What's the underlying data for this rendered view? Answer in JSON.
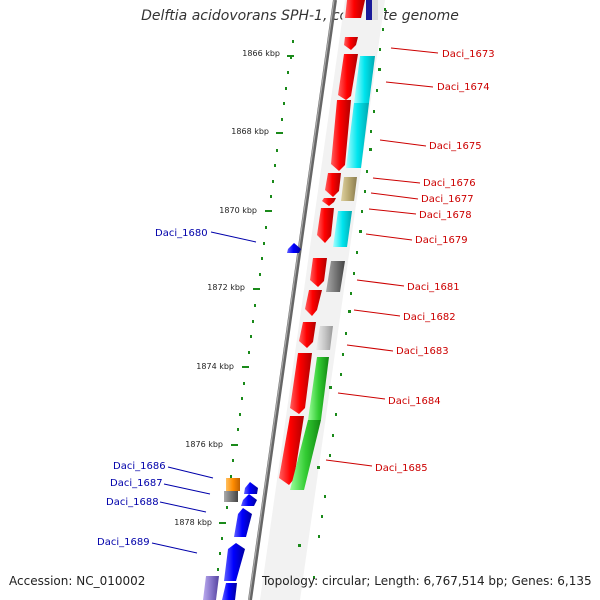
{
  "title": "Delftia acidovorans SPH-1, complete genome",
  "accession": "Accession: NC_010002",
  "topology": "Topology: circular; Length: 6,767,514 bp; Genes: 6,135",
  "scale_ticks": [
    "1866 kbp",
    "1868 kbp",
    "1870 kbp",
    "1872 kbp",
    "1874 kbp",
    "1876 kbp",
    "1878 kbp"
  ],
  "genes_forward": [
    "Daci_1673",
    "Daci_1674",
    "Daci_1675",
    "Daci_1676",
    "Daci_1677",
    "Daci_1678",
    "Daci_1679",
    "Daci_1681",
    "Daci_1682",
    "Daci_1683",
    "Daci_1684",
    "Daci_1685"
  ],
  "genes_reverse": [
    "Daci_1680",
    "Daci_1686",
    "Daci_1687",
    "Daci_1688",
    "Daci_1689"
  ],
  "colors": {
    "forward_label": "#cc0000",
    "reverse_label": "#0000aa",
    "forward_gene": "#ff0000",
    "reverse_gene": "#0000ff",
    "cyan_feature": "#00e5ee",
    "olive_feature": "#b8a870",
    "gray_feature": "#777777",
    "lightgray_feature": "#c8c8c8",
    "green_feature": "#33cc33",
    "orange_feature": "#ff8c00",
    "purple_feature": "#8877cc",
    "tick_green": "#1a8a1a"
  }
}
